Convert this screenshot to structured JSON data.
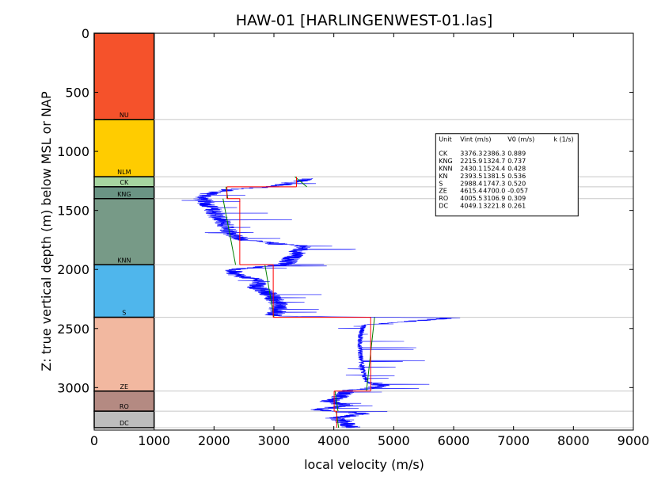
{
  "chart_data": {
    "type": "line",
    "title": "HAW-01 [HARLINGENWEST-01.las]",
    "xlabel": "local velocity (m/s)",
    "ylabel": "Z: true vertical depth (m) below MSL or NAP",
    "xlim": [
      0,
      9000
    ],
    "ylim": [
      3360,
      0
    ],
    "xticks": [
      "0",
      "1000",
      "2000",
      "3000",
      "4000",
      "5000",
      "6000",
      "7000",
      "8000",
      "9000"
    ],
    "yticks": [
      "0",
      "500",
      "1000",
      "1500",
      "2000",
      "2500",
      "3000"
    ],
    "formations": [
      {
        "name": "NU",
        "top": 0,
        "bottom": 730,
        "color": "#f5522b"
      },
      {
        "name": "NLM",
        "top": 730,
        "bottom": 1215,
        "color": "#ffcc00"
      },
      {
        "name": "CK",
        "top": 1215,
        "bottom": 1300,
        "color": "#a6d5a0"
      },
      {
        "name": "KNG",
        "top": 1300,
        "bottom": 1400,
        "color": "#6a9484"
      },
      {
        "name": "KNN",
        "top": 1400,
        "bottom": 1960,
        "color": "#779a87"
      },
      {
        "name": "S",
        "top": 1960,
        "bottom": 2405,
        "color": "#4fb6ec"
      },
      {
        "name": "ZE",
        "top": 2405,
        "bottom": 3030,
        "color": "#f2b8a0"
      },
      {
        "name": "RO",
        "top": 3030,
        "bottom": 3200,
        "color": "#b48a82"
      },
      {
        "name": "DC",
        "top": 3200,
        "bottom": 3340,
        "color": "#bdbdbd"
      }
    ],
    "interval_velocity": [
      {
        "unit": "CK",
        "top": 1215,
        "bottom": 1300,
        "vint": 3376.3
      },
      {
        "unit": "KNG",
        "top": 1300,
        "bottom": 1400,
        "vint": 2215.9
      },
      {
        "unit": "KNN",
        "top": 1400,
        "bottom": 1960,
        "vint": 2430.1
      },
      {
        "unit": "S",
        "top": 1960,
        "bottom": 2405,
        "vint": 2988.4
      },
      {
        "unit": "ZE",
        "top": 2405,
        "bottom": 3030,
        "vint": 4615.4
      },
      {
        "unit": "RO",
        "top": 3030,
        "bottom": 3200,
        "vint": 4005.5
      },
      {
        "unit": "DC",
        "top": 3200,
        "bottom": 3340,
        "vint": 4049.1
      }
    ],
    "linear_trend": [
      {
        "unit": "CK",
        "points": [
          [
            3350,
            1215
          ],
          [
            3550,
            1300
          ]
        ]
      },
      {
        "unit": "KNG",
        "points": [
          [
            2200,
            1300
          ],
          [
            2230,
            1400
          ]
        ]
      },
      {
        "unit": "KNN",
        "points": [
          [
            2150,
            1400
          ],
          [
            2360,
            1960
          ]
        ]
      },
      {
        "unit": "S",
        "points": [
          [
            2850,
            1960
          ],
          [
            3000,
            2405
          ]
        ]
      },
      {
        "unit": "ZE",
        "points": [
          [
            4680,
            2405
          ],
          [
            4545,
            3030
          ]
        ]
      },
      {
        "unit": "RO",
        "points": [
          [
            4020,
            3030
          ],
          [
            4070,
            3200
          ]
        ]
      },
      {
        "unit": "DC",
        "points": [
          [
            4040,
            3200
          ],
          [
            4080,
            3340
          ]
        ]
      }
    ],
    "log_trend": [
      [
        3600,
        1230
      ],
      [
        3000,
        1300
      ],
      [
        2300,
        1320
      ],
      [
        1900,
        1360
      ],
      [
        1800,
        1400
      ],
      [
        1900,
        1450
      ],
      [
        2000,
        1500
      ],
      [
        2050,
        1550
      ],
      [
        2150,
        1600
      ],
      [
        2300,
        1700
      ],
      [
        2500,
        1750
      ],
      [
        3200,
        1790
      ],
      [
        3500,
        1800
      ],
      [
        3400,
        1850
      ],
      [
        3300,
        1900
      ],
      [
        3200,
        1960
      ],
      [
        2300,
        2000
      ],
      [
        2400,
        2050
      ],
      [
        2800,
        2100
      ],
      [
        2700,
        2150
      ],
      [
        2900,
        2200
      ],
      [
        3000,
        2250
      ],
      [
        3100,
        2300
      ],
      [
        3050,
        2350
      ],
      [
        3000,
        2395
      ],
      [
        6000,
        2410
      ],
      [
        4500,
        2470
      ],
      [
        4450,
        2550
      ],
      [
        4430,
        2650
      ],
      [
        4450,
        2750
      ],
      [
        4480,
        2850
      ],
      [
        4550,
        2950
      ],
      [
        4800,
        2980
      ],
      [
        4700,
        3000
      ],
      [
        4200,
        3030
      ],
      [
        4100,
        3080
      ],
      [
        3900,
        3120
      ],
      [
        4200,
        3150
      ],
      [
        3700,
        3190
      ],
      [
        4500,
        3220
      ],
      [
        4000,
        3260
      ],
      [
        4200,
        3300
      ],
      [
        4300,
        3340
      ]
    ],
    "table": {
      "header": [
        "Unit",
        "Vint (m/s)",
        "V0 (m/s)",
        "k (1/s)"
      ],
      "rows": [
        [
          "CK",
          "3376.3",
          "2386.3",
          "0.889"
        ],
        [
          "KNG",
          "2215.9",
          "1324.7",
          "0.737"
        ],
        [
          "KNN",
          "2430.1",
          "1524.4",
          "0.428"
        ],
        [
          "KN",
          "2393.5",
          "1381.5",
          "0.536"
        ],
        [
          "S",
          "2988.4",
          "1747.3",
          "0.520"
        ],
        [
          "ZE",
          "4615.4",
          "4700.0",
          "-0.057"
        ],
        [
          "RO",
          "4005.5",
          "3106.9",
          "0.309"
        ],
        [
          "DC",
          "4049.1",
          "3221.8",
          "0.261"
        ]
      ]
    },
    "colors": {
      "log": "#0000ff",
      "interval": "#ff0000",
      "trend": "#008000",
      "boundary": "#c8c8c8"
    }
  }
}
